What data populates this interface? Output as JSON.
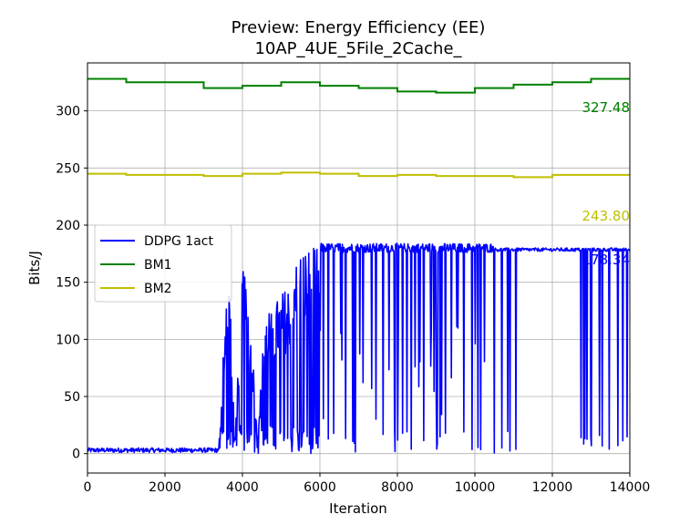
{
  "chart_data": {
    "type": "line",
    "title": "Preview: Energy Efficiency (EE)",
    "subtitle": "10AP_4UE_5File_2Cache_",
    "xlabel": "Iteration",
    "ylabel": "Bits/J",
    "xlim": [
      0,
      14000
    ],
    "ylim": [
      -17,
      342
    ],
    "xticks": [
      0,
      2000,
      4000,
      6000,
      8000,
      10000,
      12000,
      14000
    ],
    "yticks": [
      0,
      50,
      100,
      150,
      200,
      250,
      300
    ],
    "grid": true,
    "legend_position": "center-left",
    "series": [
      {
        "name": "DDPG 1act",
        "color": "#0000ff",
        "final_value_label": "178.34",
        "description_points": {
          "x": [
            0,
            1000,
            2000,
            3000,
            3400,
            3500,
            3600,
            3700,
            3800,
            4000,
            4200,
            4400,
            4600,
            4800,
            5000,
            5200,
            5400,
            5600,
            5800,
            6000,
            6500,
            7000,
            7500,
            8000,
            8500,
            9000,
            9500,
            10000,
            10500,
            11000,
            11500,
            12000,
            12500,
            13000,
            13500,
            14000
          ],
          "y": [
            1,
            2,
            2,
            4,
            8,
            90,
            160,
            140,
            6,
            170,
            120,
            20,
            135,
            130,
            140,
            150,
            175,
            180,
            180,
            182,
            183,
            182,
            181,
            181,
            182,
            183,
            182,
            182,
            180,
            180,
            180,
            179,
            179,
            178,
            178,
            178
          ]
        }
      },
      {
        "name": "BM1",
        "color": "#008000",
        "final_value_label": "327.48",
        "steps": {
          "x": [
            0,
            1000,
            2000,
            3000,
            4000,
            5000,
            6000,
            7000,
            8000,
            9000,
            10000,
            11000,
            12000,
            13000,
            14000
          ],
          "y": [
            328,
            325,
            325,
            320,
            322,
            325,
            322,
            320,
            317,
            316,
            320,
            323,
            325,
            328,
            328
          ]
        }
      },
      {
        "name": "BM2",
        "color": "#bfbf00",
        "final_value_label": "243.80",
        "steps": {
          "x": [
            0,
            1000,
            2000,
            3000,
            4000,
            5000,
            6000,
            7000,
            8000,
            9000,
            10000,
            11000,
            12000,
            13000,
            14000
          ],
          "y": [
            245,
            244,
            244,
            243,
            245,
            246,
            245,
            243,
            244,
            243,
            243,
            242,
            244,
            244,
            244
          ]
        }
      }
    ]
  }
}
